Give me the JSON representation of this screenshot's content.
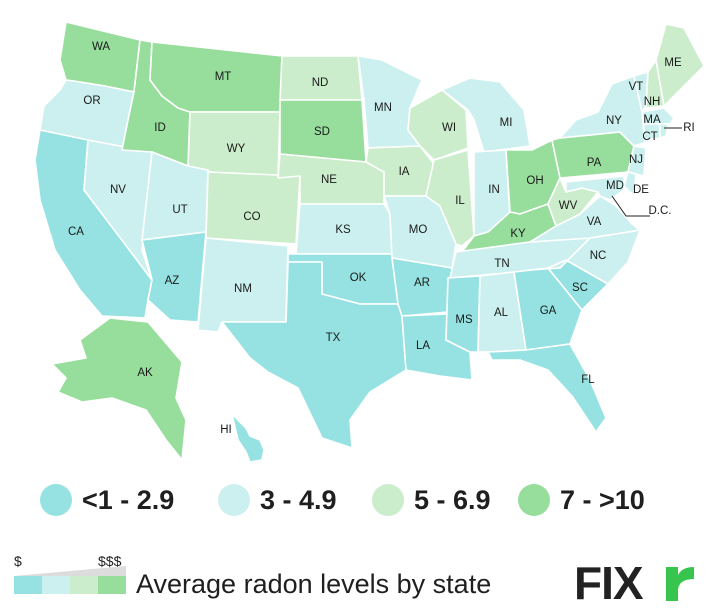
{
  "colors": {
    "lt1_2_9": "#96E2E2",
    "r3_4_9": "#CCF0EF",
    "r5_6_9": "#CBEDCB",
    "r7_10": "#97DE9C",
    "brand_accent": "#37C54E"
  },
  "legend": {
    "items": [
      {
        "label": "<1 - 2.9",
        "color": "#96E2E2"
      },
      {
        "label": "3 - 4.9",
        "color": "#CCF0EF"
      },
      {
        "label": "5 - 6.9",
        "color": "#CBEDCB"
      },
      {
        "label": "7 - >10",
        "color": "#97DE9C"
      }
    ]
  },
  "footer": {
    "cost_low": "$",
    "cost_high": "$$$",
    "caption": "Average radon levels by state"
  },
  "logo": {
    "text": "FIXr"
  },
  "states": {
    "WA": "WA",
    "OR": "OR",
    "CA": "CA",
    "NV": "NV",
    "ID": "ID",
    "MT": "MT",
    "WY": "WY",
    "UT": "UT",
    "AZ": "AZ",
    "CO": "CO",
    "NM": "NM",
    "ND": "ND",
    "SD": "SD",
    "NE": "NE",
    "KS": "KS",
    "OK": "OK",
    "TX": "TX",
    "MN": "MN",
    "IA": "IA",
    "MO": "MO",
    "AR": "AR",
    "LA": "LA",
    "WI": "WI",
    "IL": "IL",
    "MI": "MI",
    "IN": "IN",
    "OH": "OH",
    "KY": "KY",
    "TN": "TN",
    "MS": "MS",
    "AL": "AL",
    "GA": "GA",
    "FL": "FL",
    "SC": "SC",
    "NC": "NC",
    "VA": "VA",
    "WV": "WV",
    "PA": "PA",
    "NY": "NY",
    "VT": "VT",
    "NH": "NH",
    "ME": "ME",
    "MA": "MA",
    "CT": "CT",
    "RI": "RI",
    "NJ": "NJ",
    "DE": "DE",
    "MD": "MD",
    "DC": "D.C.",
    "AK": "AK",
    "HI": "HI"
  }
}
